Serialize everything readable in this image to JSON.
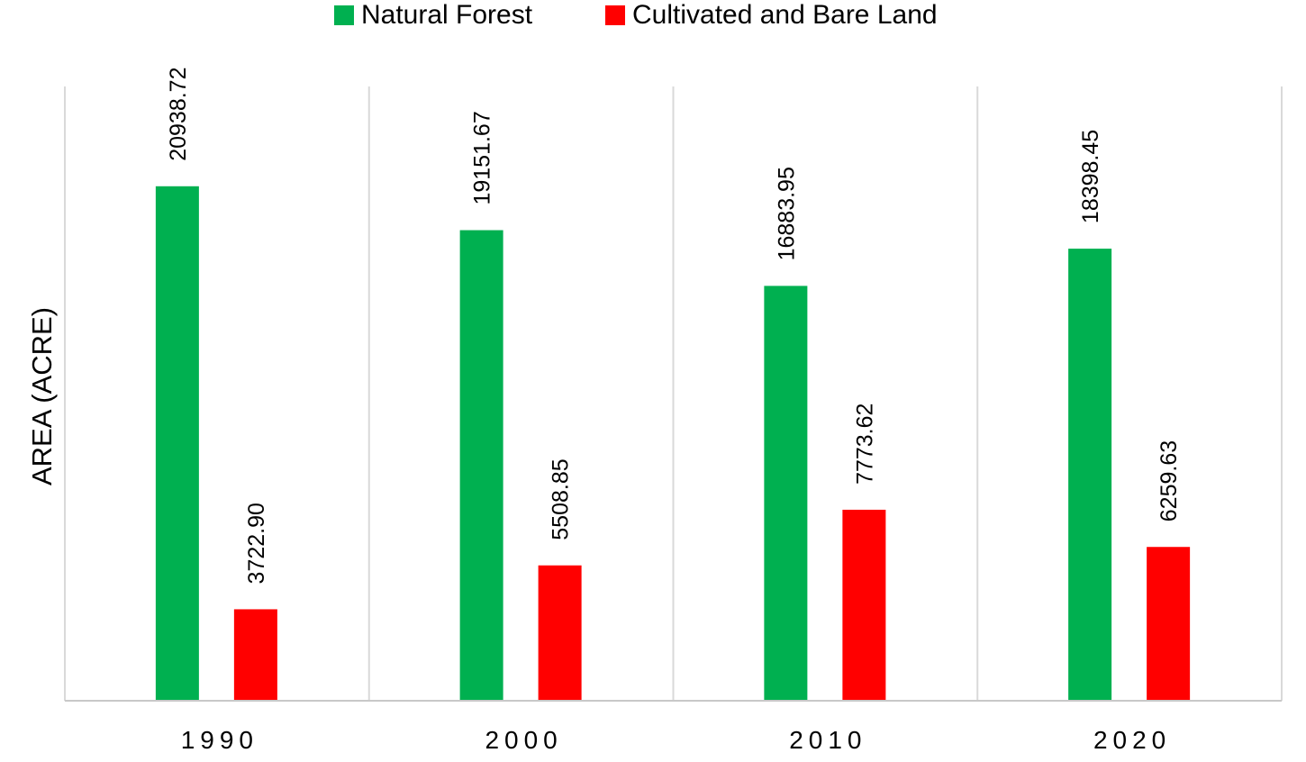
{
  "chart_data": {
    "type": "bar",
    "categories": [
      "1990",
      "2000",
      "2010",
      "2020"
    ],
    "series": [
      {
        "name": "Natural Forest",
        "color": "#00B050",
        "values": [
          20938.72,
          19151.67,
          16883.95,
          18398.45
        ],
        "labels": [
          "20938.72",
          "19151.67",
          "16883.95",
          "18398.45"
        ]
      },
      {
        "name": "Cultivated and Bare Land",
        "color": "#FF0000",
        "values": [
          3722.9,
          5508.85,
          7773.62,
          6259.63
        ],
        "labels": [
          "3722.90",
          "5508.85",
          "7773.62",
          "6259.63"
        ]
      }
    ],
    "ylabel": "AREA (ACRE)",
    "xlabel": "",
    "ylim": [
      0,
      25000
    ],
    "grid": "vertical category separators",
    "legend": "top-center"
  }
}
